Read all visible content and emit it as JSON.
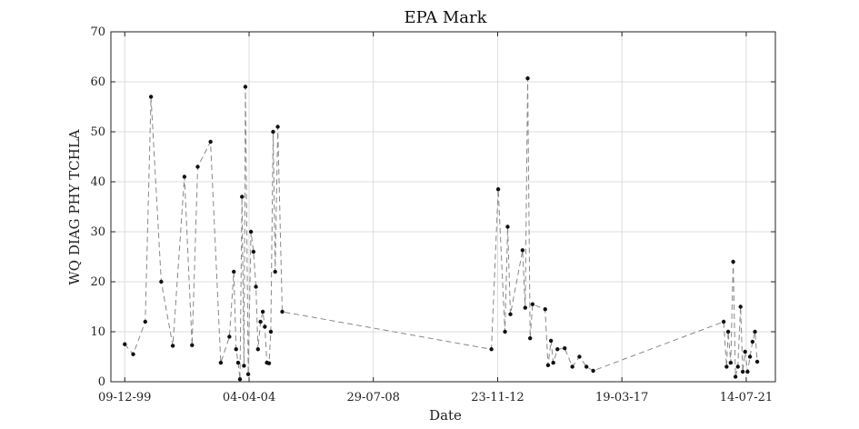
{
  "chart_data": {
    "type": "line",
    "title": "EPA Mark",
    "xlabel": "Date",
    "ylabel": "WQ DIAG PHY TCHLA",
    "xlim": [
      "1999-06-16",
      "2022-07-19"
    ],
    "ylim": [
      0,
      70
    ],
    "grid": true,
    "legend": "none",
    "yticks": [
      0,
      10,
      20,
      30,
      40,
      50,
      60,
      70
    ],
    "xticks": [
      {
        "date": "1999-12-09",
        "label": "09-12-99"
      },
      {
        "date": "2004-04-04",
        "label": "04-04-04"
      },
      {
        "date": "2008-07-29",
        "label": "29-07-08"
      },
      {
        "date": "2012-11-23",
        "label": "23-11-12"
      },
      {
        "date": "2017-03-19",
        "label": "19-03-17"
      },
      {
        "date": "2021-07-14",
        "label": "14-07-21"
      }
    ],
    "style": {
      "line_color": "#888888",
      "marker_color": "#111111",
      "line_dash": "dashed"
    },
    "series": [
      {
        "x": [
          "1999-12-09",
          "2000-03-25",
          "2000-08-25",
          "2000-11-06",
          "2001-03-16",
          "2001-08-10",
          "2002-01-04",
          "2002-04-11",
          "2002-06-22",
          "2002-12-02",
          "2003-04-11",
          "2003-07-29",
          "2003-09-23",
          "2003-10-22",
          "2003-11-17",
          "2003-12-10",
          "2004-01-05",
          "2004-01-30",
          "2004-02-17",
          "2004-03-24",
          "2004-04-28",
          "2004-05-30",
          "2004-06-30",
          "2004-07-26",
          "2004-08-27",
          "2004-09-25",
          "2004-10-21",
          "2004-11-16",
          "2004-12-13",
          "2005-01-05",
          "2005-02-03",
          "2005-03-01",
          "2005-04-03",
          "2005-05-30",
          "2012-09-05",
          "2012-11-30",
          "2013-02-24",
          "2013-03-30",
          "2013-05-04",
          "2013-10-05",
          "2013-11-08",
          "2013-12-09",
          "2014-01-09",
          "2014-02-09",
          "2014-07-19",
          "2014-08-25",
          "2014-10-01",
          "2014-10-30",
          "2014-12-22",
          "2015-03-24",
          "2015-06-29",
          "2015-09-27",
          "2015-12-25",
          "2016-03-20",
          "2020-10-01",
          "2020-11-07",
          "2020-11-27",
          "2020-12-29",
          "2021-01-30",
          "2021-02-28",
          "2021-03-30",
          "2021-05-03",
          "2021-05-31",
          "2021-06-30",
          "2021-07-31",
          "2021-08-31",
          "2021-10-02",
          "2021-11-02",
          "2021-12-01"
        ],
        "y": [
          7.5,
          5.5,
          12,
          57,
          20,
          7.2,
          41,
          7.3,
          43,
          48,
          3.8,
          9,
          22,
          6.5,
          3.8,
          0.5,
          37,
          3.2,
          59,
          1.5,
          30,
          26,
          19,
          6.5,
          12,
          14,
          11,
          3.8,
          3.7,
          10,
          50,
          22,
          51,
          14,
          6.5,
          38.5,
          10,
          31,
          13.5,
          26.3,
          14.8,
          60.7,
          8.7,
          15.5,
          14.5,
          3.3,
          8.2,
          3.8,
          6.5,
          6.7,
          3.0,
          5.0,
          3.0,
          2.2,
          12,
          3.0,
          10,
          3.8,
          24,
          1.0,
          3.0,
          15,
          2.0,
          6.0,
          2.0,
          5.0,
          8.0,
          10,
          4.0
        ]
      }
    ]
  }
}
